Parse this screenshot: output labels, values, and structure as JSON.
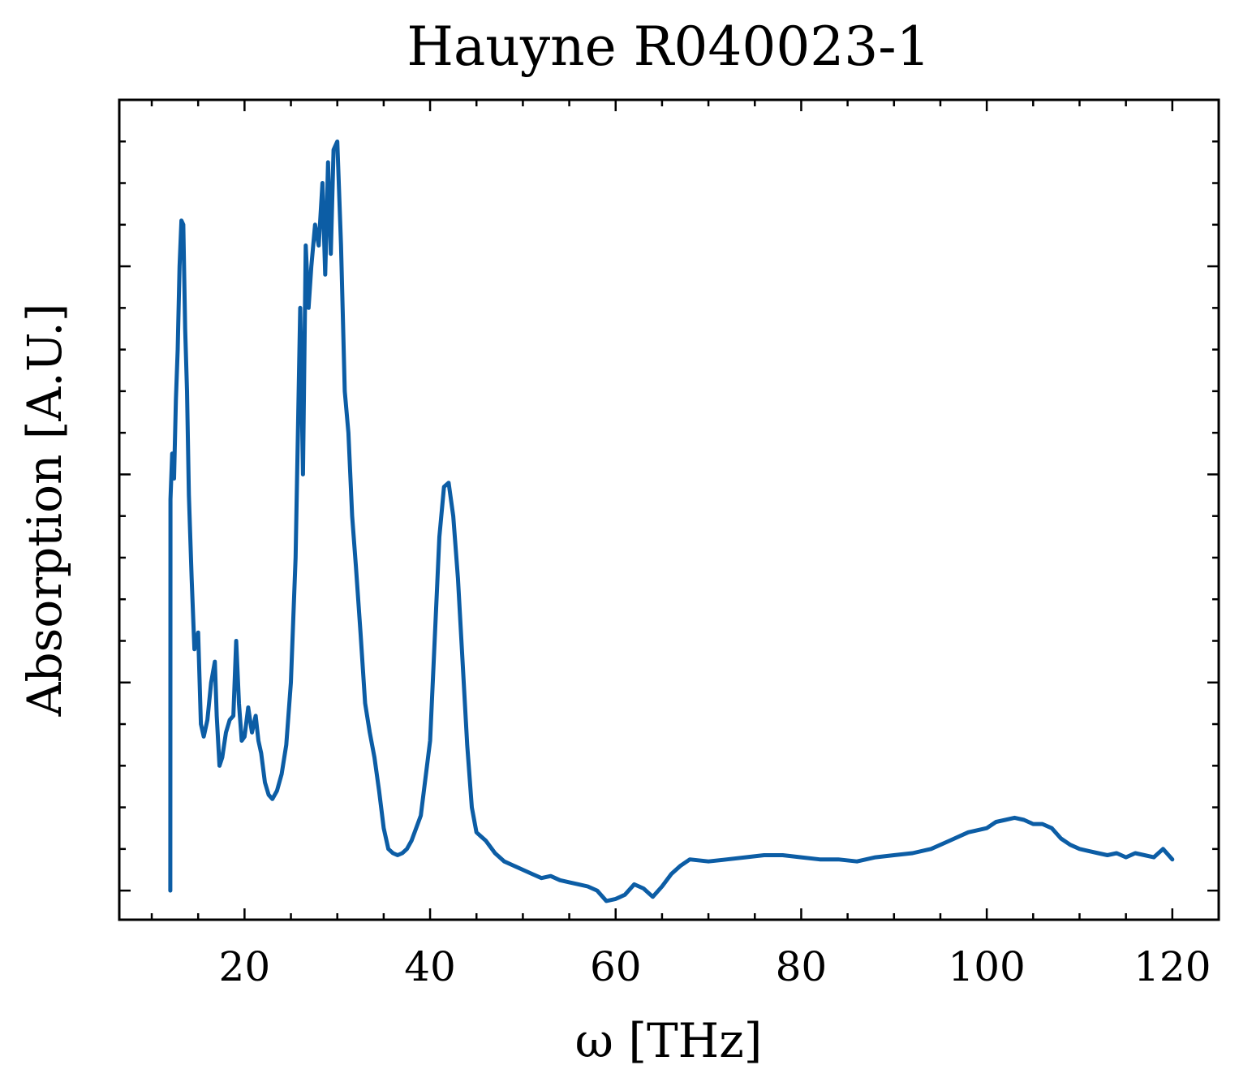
{
  "chart_data": {
    "type": "line",
    "title": "Hauyne R040023-1",
    "xlabel": "ω [THz]",
    "ylabel": "Absorption [A.U.]",
    "xlim": [
      6.5,
      125
    ],
    "ylim": [
      -0.07,
      1.9
    ],
    "x_ticks": [
      20,
      40,
      60,
      80,
      100,
      120
    ],
    "x_tick_labels": [
      "20",
      "40",
      "60",
      "80",
      "100",
      "120"
    ],
    "x_minor_step": 5,
    "y_major_ticks": [
      0,
      0.5,
      1.0,
      1.5
    ],
    "y_minor_step": 0.1,
    "y_tick_labels_shown": false,
    "grid": false,
    "ticks_direction": "in",
    "series": [
      {
        "color": "#0c5da5",
        "x": [
          12,
          12.02,
          12.2,
          12.4,
          12.6,
          12.8,
          13.0,
          13.2,
          13.4,
          13.6,
          13.8,
          14.0,
          14.3,
          14.6,
          15.0,
          15.3,
          15.6,
          16.0,
          16.4,
          16.8,
          17.0,
          17.3,
          17.6,
          18.0,
          18.4,
          18.8,
          19.1,
          19.4,
          19.7,
          20.0,
          20.4,
          20.8,
          21.2,
          21.5,
          21.8,
          22.2,
          22.6,
          23.0,
          23.5,
          24.0,
          24.5,
          25.0,
          25.5,
          26.0,
          26.3,
          26.6,
          26.9,
          27.2,
          27.6,
          28.0,
          28.4,
          28.7,
          29.0,
          29.3,
          29.6,
          30.0,
          30.4,
          30.8,
          31.2,
          31.6,
          32.0,
          32.5,
          33.0,
          33.5,
          34.0,
          34.5,
          35.0,
          35.5,
          36.0,
          36.5,
          37.0,
          37.5,
          38.0,
          39.0,
          40.0,
          41.0,
          41.5,
          42.0,
          42.5,
          43.0,
          43.5,
          44.0,
          44.5,
          45.0,
          45.5,
          46.0,
          47.0,
          48.0,
          49.0,
          50.0,
          51.0,
          52.0,
          53.0,
          54.0,
          55.0,
          56.0,
          57.0,
          58.0,
          59.0,
          60.0,
          61.0,
          62.0,
          63.0,
          64.0,
          65.0,
          66.0,
          67.0,
          68.0,
          70.0,
          72.0,
          74.0,
          76.0,
          78.0,
          80.0,
          82.0,
          84.0,
          86.0,
          88.0,
          90.0,
          92.0,
          94.0,
          96.0,
          98.0,
          100.0,
          101.0,
          102.0,
          103.0,
          104.0,
          105.0,
          106.0,
          107.0,
          108.0,
          109.0,
          110.0,
          111.0,
          112.0,
          113.0,
          114.0,
          115.0,
          116.0,
          117.0,
          118.0,
          119.0,
          120.0
        ],
        "values": [
          0.0,
          0.94,
          1.05,
          0.99,
          1.18,
          1.3,
          1.5,
          1.61,
          1.6,
          1.35,
          1.2,
          0.95,
          0.75,
          0.58,
          0.62,
          0.4,
          0.37,
          0.41,
          0.5,
          0.55,
          0.42,
          0.3,
          0.32,
          0.38,
          0.41,
          0.42,
          0.6,
          0.45,
          0.36,
          0.37,
          0.44,
          0.38,
          0.42,
          0.36,
          0.33,
          0.26,
          0.23,
          0.22,
          0.24,
          0.28,
          0.35,
          0.5,
          0.8,
          1.4,
          1.0,
          1.55,
          1.4,
          1.5,
          1.6,
          1.55,
          1.7,
          1.48,
          1.75,
          1.53,
          1.78,
          1.8,
          1.55,
          1.2,
          1.1,
          0.9,
          0.78,
          0.62,
          0.45,
          0.38,
          0.32,
          0.24,
          0.15,
          0.1,
          0.09,
          0.085,
          0.09,
          0.1,
          0.12,
          0.18,
          0.36,
          0.85,
          0.97,
          0.98,
          0.9,
          0.75,
          0.55,
          0.35,
          0.2,
          0.14,
          0.13,
          0.12,
          0.09,
          0.07,
          0.06,
          0.05,
          0.04,
          0.03,
          0.035,
          0.025,
          0.02,
          0.015,
          0.01,
          0.0,
          -0.025,
          -0.02,
          -0.01,
          0.015,
          0.005,
          -0.015,
          0.01,
          0.04,
          0.06,
          0.075,
          0.07,
          0.075,
          0.08,
          0.085,
          0.085,
          0.08,
          0.075,
          0.075,
          0.07,
          0.08,
          0.085,
          0.09,
          0.1,
          0.12,
          0.14,
          0.15,
          0.165,
          0.17,
          0.175,
          0.17,
          0.16,
          0.16,
          0.15,
          0.125,
          0.11,
          0.1,
          0.095,
          0.09,
          0.085,
          0.09,
          0.08,
          0.09,
          0.085,
          0.08,
          0.1,
          0.075
        ]
      }
    ]
  }
}
